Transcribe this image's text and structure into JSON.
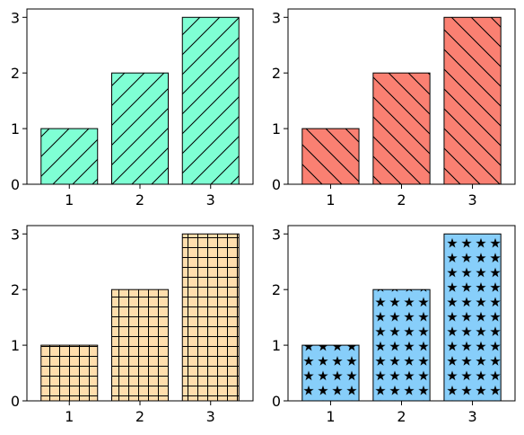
{
  "chart_data": [
    {
      "type": "bar",
      "categories": [
        "1",
        "2",
        "3"
      ],
      "values": [
        1,
        2,
        3
      ],
      "ylim": [
        0,
        3.15
      ],
      "yticks": [
        0,
        1,
        2,
        3
      ],
      "bar_color": "#7FFFD4",
      "hatch": "forward-diagonal",
      "title": "",
      "xlabel": "",
      "ylabel": "",
      "grid": false
    },
    {
      "type": "bar",
      "categories": [
        "1",
        "2",
        "3"
      ],
      "values": [
        1,
        2,
        3
      ],
      "ylim": [
        0,
        3.15
      ],
      "yticks": [
        0,
        1,
        2,
        3
      ],
      "bar_color": "#FA8072",
      "hatch": "back-diagonal",
      "title": "",
      "xlabel": "",
      "ylabel": "",
      "grid": false
    },
    {
      "type": "bar",
      "categories": [
        "1",
        "2",
        "3"
      ],
      "values": [
        1,
        2,
        3
      ],
      "ylim": [
        0,
        3.15
      ],
      "yticks": [
        0,
        1,
        2,
        3
      ],
      "bar_color": "#FFDEAD",
      "hatch": "grid",
      "title": "",
      "xlabel": "",
      "ylabel": "",
      "grid": false
    },
    {
      "type": "bar",
      "categories": [
        "1",
        "2",
        "3"
      ],
      "values": [
        1,
        2,
        3
      ],
      "ylim": [
        0,
        3.15
      ],
      "yticks": [
        0,
        1,
        2,
        3
      ],
      "bar_color": "#87CEFA",
      "hatch": "stars",
      "title": "",
      "xlabel": "",
      "ylabel": "",
      "grid": false
    }
  ]
}
